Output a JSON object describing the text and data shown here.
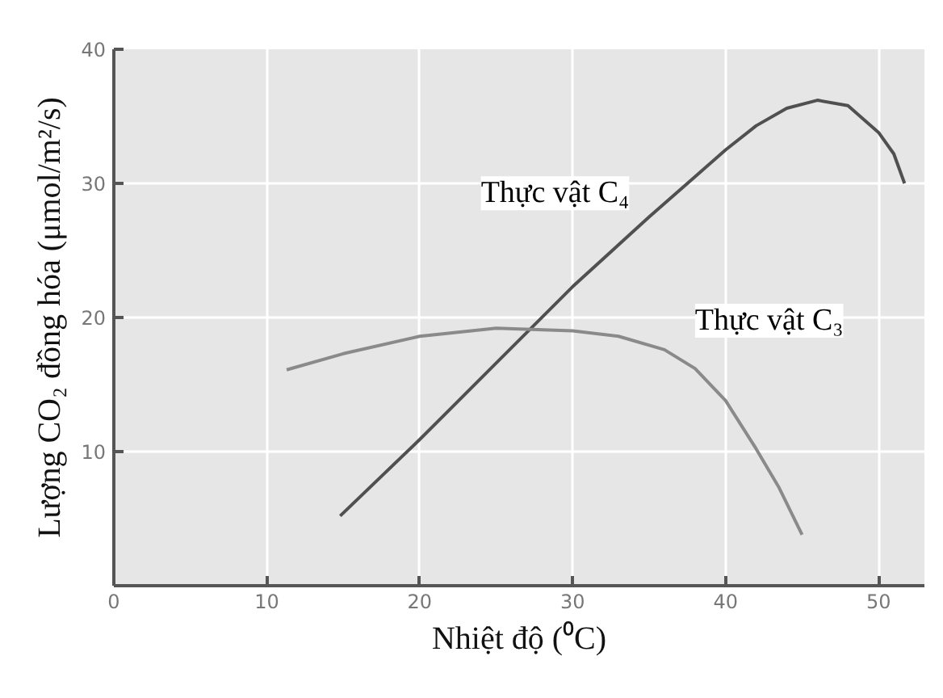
{
  "chart_data": {
    "type": "line",
    "xlabel": "Nhiệt độ (⁰C)",
    "ylabel": "Lượng CO₂ đồng hóa (μmol/m²/s)",
    "xlim": [
      0,
      53
    ],
    "ylim": [
      0,
      40
    ],
    "xticks": [
      0,
      10,
      20,
      30,
      40,
      50
    ],
    "yticks": [
      {
        "value": 0,
        "label": null
      },
      10,
      20,
      30,
      40
    ],
    "grid": true,
    "series": [
      {
        "name": "Thực vật C₄",
        "color": "#505050",
        "x": [
          14.8,
          20,
          25,
          30,
          35,
          38,
          40,
          42,
          44,
          46,
          48,
          50,
          51,
          51.7
        ],
        "values": [
          5.2,
          10.9,
          16.6,
          22.3,
          27.5,
          30.5,
          32.5,
          34.3,
          35.6,
          36.2,
          35.8,
          33.8,
          32.2,
          30
        ]
      },
      {
        "name": "Thực vật C₃",
        "color": "#8a8a8a",
        "x": [
          11.3,
          15,
          20,
          25,
          30,
          33,
          36,
          38,
          40,
          42,
          43.5,
          45
        ],
        "values": [
          16.1,
          17.3,
          18.6,
          19.2,
          19.0,
          18.6,
          17.6,
          16.2,
          13.8,
          10.2,
          7.3,
          3.8
        ]
      }
    ]
  }
}
